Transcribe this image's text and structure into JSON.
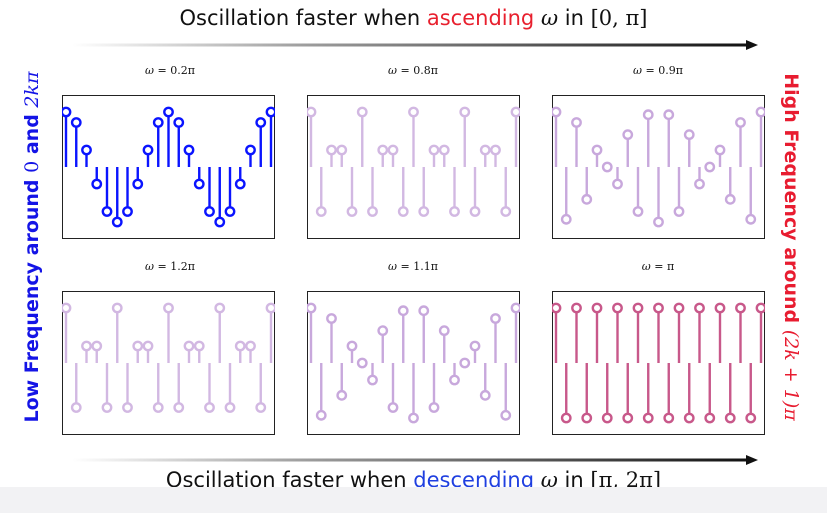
{
  "captions": {
    "top": {
      "prefix": "Oscillation faster when ",
      "highlight": "ascending",
      "highlight_color": "#e8202e",
      "math_symbol": "ω",
      "math_in": " in ",
      "math_interval": "[0, π]"
    },
    "bottom": {
      "prefix": "Oscillation faster when ",
      "highlight": "descending",
      "highlight_color": "#1f3fe0",
      "math_symbol": "ω",
      "math_in": " in ",
      "math_interval": "[π, 2π]"
    }
  },
  "side_labels": {
    "left": {
      "text": "Low Frequency around ",
      "zero": "0",
      "and": " and ",
      "math": "2kπ",
      "color": "#1414e6"
    },
    "right": {
      "text": "High Frequency around ",
      "math": "(2k + 1)π",
      "color": "#e81c30"
    }
  },
  "colors": {
    "blue": "#0a14ff",
    "lavender": "#c8a8dc",
    "lavender_light": "#d2b8e2",
    "rose": "#c8588a"
  },
  "panels": [
    {
      "id": "p1",
      "label_symbol": "ω",
      "label_value": "= 0.2π",
      "omega": 0.2,
      "color_key": "blue"
    },
    {
      "id": "p2",
      "label_symbol": "ω",
      "label_value": "= 0.8π",
      "omega": 0.8,
      "color_key": "lavender_light"
    },
    {
      "id": "p3",
      "label_symbol": "ω",
      "label_value": "= 0.9π",
      "omega": 0.9,
      "color_key": "lavender"
    },
    {
      "id": "p4",
      "label_symbol": "ω",
      "label_value": "= 1.2π",
      "omega": 1.2,
      "color_key": "lavender_light"
    },
    {
      "id": "p5",
      "label_symbol": "ω",
      "label_value": "= 1.1π",
      "omega": 1.1,
      "color_key": "lavender"
    },
    {
      "id": "p6",
      "label_symbol": "ω",
      "label_value": "= π",
      "omega": 1.0,
      "color_key": "rose"
    }
  ]
}
